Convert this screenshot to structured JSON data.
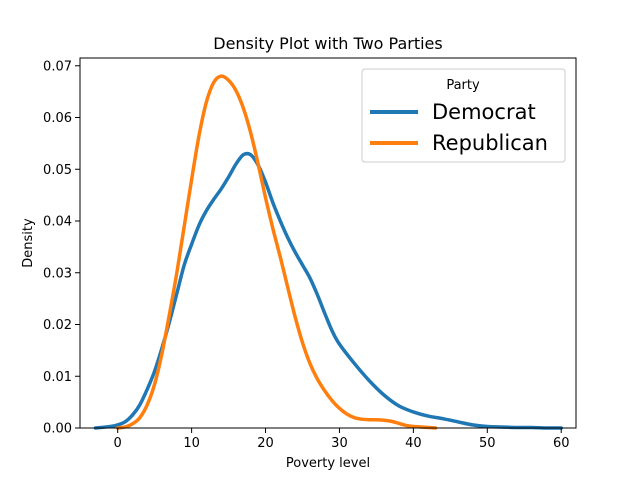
{
  "chart_data": {
    "type": "line",
    "title": "Density Plot with Two Parties",
    "xlabel": "Poverty level",
    "ylabel": "Density",
    "xlim": [
      -5.1,
      62.0
    ],
    "ylim": [
      0,
      0.0715
    ],
    "xticks": [
      0,
      10,
      20,
      30,
      40,
      50,
      60
    ],
    "xtick_labels": [
      "0",
      "10",
      "20",
      "30",
      "40",
      "50",
      "60"
    ],
    "yticks": [
      0,
      0.01,
      0.02,
      0.03,
      0.04,
      0.05,
      0.06,
      0.07
    ],
    "ytick_labels": [
      "0.00",
      "0.01",
      "0.02",
      "0.03",
      "0.04",
      "0.05",
      "0.06",
      "0.07"
    ],
    "grid": false,
    "legend": {
      "title": "Party",
      "placement": "top-right"
    },
    "series": [
      {
        "name": "Democrat",
        "color": "#1f77b4",
        "x": [
          -3,
          -1,
          0,
          1,
          2,
          3,
          4,
          5,
          6,
          7,
          8,
          9,
          10,
          11,
          12,
          13,
          14,
          15,
          16,
          17,
          18,
          19,
          20,
          21,
          22,
          23,
          24,
          25,
          26,
          27,
          28,
          29,
          30,
          32,
          34,
          36,
          38,
          40,
          42,
          44,
          46,
          48,
          50,
          52,
          54,
          56,
          58,
          60
        ],
        "y": [
          0.0,
          0.0003,
          0.0006,
          0.0012,
          0.0025,
          0.0045,
          0.0075,
          0.011,
          0.0155,
          0.0205,
          0.026,
          0.0315,
          0.0355,
          0.0392,
          0.042,
          0.0442,
          0.0462,
          0.0485,
          0.051,
          0.0528,
          0.0528,
          0.0508,
          0.0475,
          0.0435,
          0.04,
          0.0368,
          0.034,
          0.0315,
          0.029,
          0.0258,
          0.0222,
          0.0188,
          0.0162,
          0.0125,
          0.0092,
          0.0064,
          0.0043,
          0.0031,
          0.0023,
          0.0018,
          0.0012,
          0.0006,
          0.0003,
          0.0002,
          0.0001,
          0.0001,
          0.0,
          0.0
        ]
      },
      {
        "name": "Republican",
        "color": "#ff7f0e",
        "x": [
          0,
          1,
          2,
          3,
          4,
          5,
          6,
          7,
          8,
          9,
          10,
          11,
          12,
          13,
          14,
          15,
          16,
          17,
          18,
          19,
          20,
          21,
          22,
          23,
          24,
          25,
          26,
          27,
          28,
          29,
          30,
          31,
          32,
          33,
          34,
          35,
          36,
          37,
          38,
          39,
          40,
          41,
          42,
          43
        ],
        "y": [
          0.0,
          0.0002,
          0.0008,
          0.002,
          0.0045,
          0.0085,
          0.0145,
          0.022,
          0.03,
          0.039,
          0.048,
          0.0565,
          0.063,
          0.0668,
          0.068,
          0.0672,
          0.0652,
          0.0618,
          0.057,
          0.051,
          0.0445,
          0.0385,
          0.033,
          0.0272,
          0.0215,
          0.0165,
          0.0125,
          0.0095,
          0.0072,
          0.0053,
          0.0038,
          0.0027,
          0.002,
          0.0017,
          0.0016,
          0.0016,
          0.0015,
          0.0013,
          0.0009,
          0.0005,
          0.0003,
          0.0002,
          0.0001,
          0.0
        ]
      }
    ]
  }
}
